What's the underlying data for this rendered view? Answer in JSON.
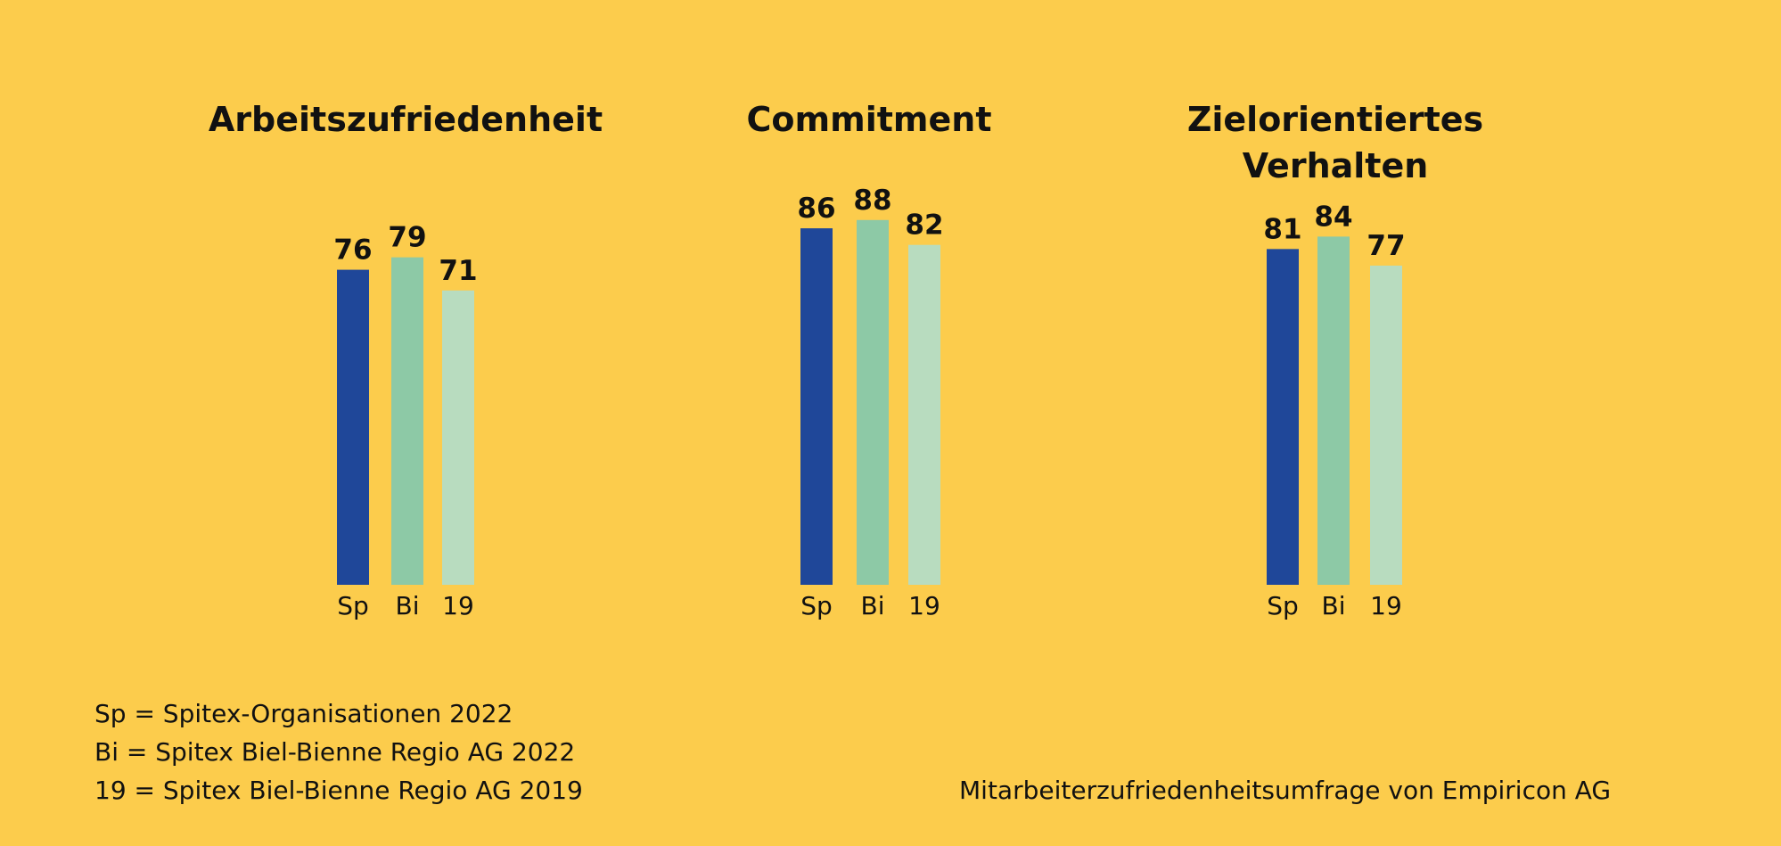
{
  "chart_data": {
    "type": "bar",
    "categories": [
      "Sp",
      "Bi",
      "19"
    ],
    "colors": [
      "#1F4799",
      "#8DC9A6",
      "#B8DCBF"
    ],
    "ylim": [
      0,
      100
    ],
    "groups": [
      {
        "title": "Arbeitszufriedenheit",
        "values": [
          76,
          79,
          71
        ]
      },
      {
        "title": "Commitment",
        "values": [
          86,
          88,
          82
        ]
      },
      {
        "title": "Zielorientiertes\nVerhalten",
        "values": [
          81,
          84,
          77
        ]
      }
    ]
  },
  "legend": [
    "Sp = Spitex-Organisationen 2022",
    "Bi = Spitex Biel-Bienne Regio AG 2022",
    "19 = Spitex Biel-Bienne Regio AG 2019"
  ],
  "source": "Mitarbeiterzufriedenheitsumfrage von Empiricon AG"
}
